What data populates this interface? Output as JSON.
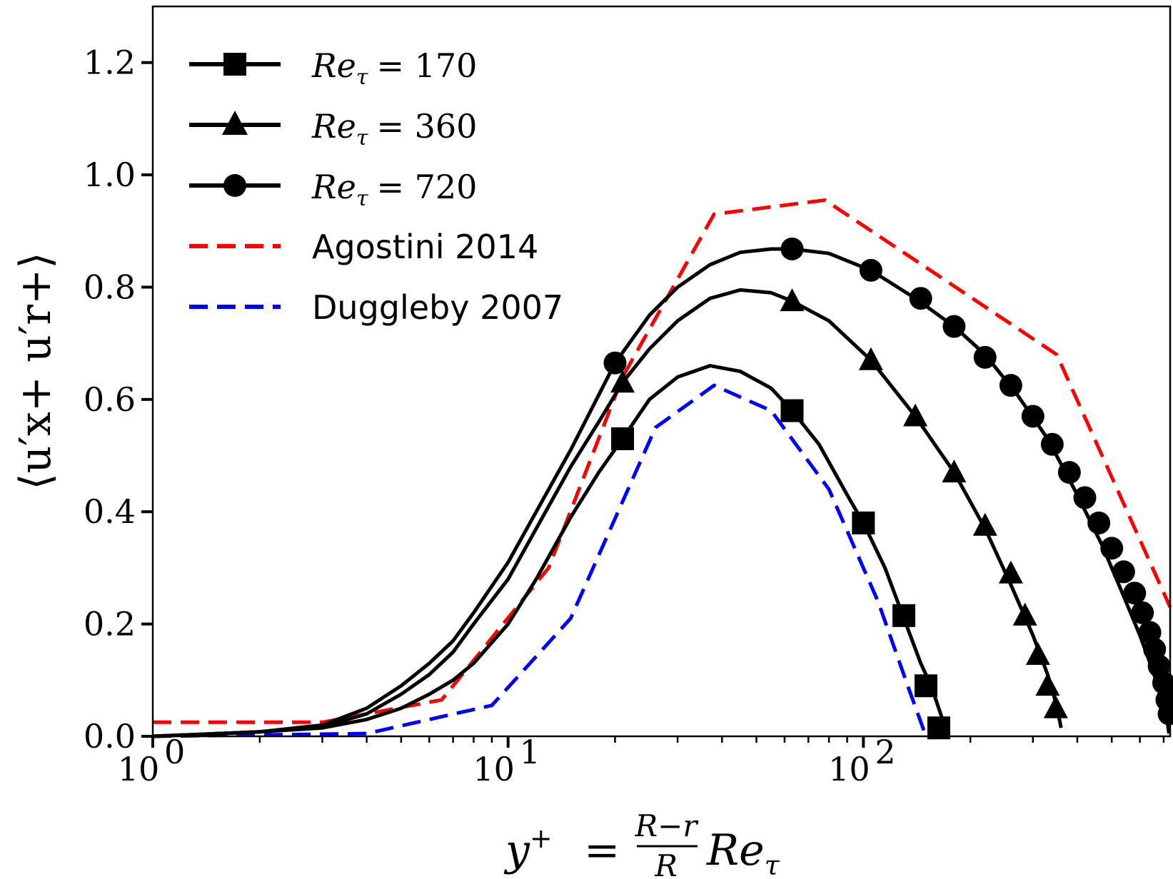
{
  "chart_data": {
    "type": "line",
    "xscale": "log",
    "xlim": [
      1,
      730
    ],
    "ylim": [
      0,
      1.3
    ],
    "grid": false,
    "legend_position": "top-left",
    "x_ticks": [
      {
        "value": 1,
        "label": "10",
        "exp": "0"
      },
      {
        "value": 10,
        "label": "10",
        "exp": "1"
      },
      {
        "value": 100,
        "label": "10",
        "exp": "2"
      }
    ],
    "y_ticks": [
      {
        "value": 0.0,
        "label": "0.0"
      },
      {
        "value": 0.2,
        "label": "0.2"
      },
      {
        "value": 0.4,
        "label": "0.4"
      },
      {
        "value": 0.6,
        "label": "0.6"
      },
      {
        "value": 0.8,
        "label": "0.8"
      },
      {
        "value": 1.0,
        "label": "1.0"
      },
      {
        "value": 1.2,
        "label": "1.2"
      }
    ],
    "xlabel": {
      "lhs": "y",
      "sup": "+",
      "eq": "=",
      "num": "R−r",
      "den": "R",
      "rhs": "Re",
      "sub": "τ"
    },
    "ylabel": "⟨u′x+ u′r+⟩",
    "series": [
      {
        "name": "Re_τ = 170",
        "legend": {
          "re": "Re",
          "sub": "τ",
          "eq": "= 170"
        },
        "color": "#000000",
        "dash": "solid",
        "marker": "square",
        "x": [
          1,
          2,
          3,
          4,
          5,
          6,
          7,
          8,
          10,
          12,
          15,
          18,
          21,
          25,
          30,
          37,
          45,
          55,
          63,
          75,
          90,
          100,
          115,
          130,
          145,
          155,
          163,
          170
        ],
        "y": [
          0,
          0.008,
          0.015,
          0.03,
          0.05,
          0.075,
          0.1,
          0.13,
          0.2,
          0.28,
          0.39,
          0.47,
          0.53,
          0.6,
          0.64,
          0.66,
          0.65,
          0.62,
          0.58,
          0.52,
          0.43,
          0.38,
          0.3,
          0.21,
          0.13,
          0.09,
          0.05,
          0.015
        ],
        "markers_x": [
          21,
          63,
          100,
          130,
          150,
          163
        ],
        "markers_y": [
          0.53,
          0.58,
          0.38,
          0.215,
          0.09,
          0.015
        ]
      },
      {
        "name": "Re_τ = 360",
        "legend": {
          "re": "Re",
          "sub": "τ",
          "eq": "= 360"
        },
        "color": "#000000",
        "dash": "solid",
        "marker": "triangle",
        "x": [
          1,
          2,
          3,
          4,
          5,
          6,
          7,
          8,
          10,
          12,
          15,
          18,
          21,
          25,
          30,
          37,
          45,
          55,
          63,
          80,
          105,
          140,
          180,
          220,
          260,
          300,
          330,
          350,
          360
        ],
        "y": [
          0,
          0.008,
          0.017,
          0.04,
          0.075,
          0.11,
          0.15,
          0.2,
          0.28,
          0.37,
          0.48,
          0.56,
          0.63,
          0.69,
          0.74,
          0.78,
          0.795,
          0.79,
          0.775,
          0.74,
          0.67,
          0.57,
          0.47,
          0.37,
          0.27,
          0.18,
          0.11,
          0.055,
          0.015
        ],
        "markers_x": [
          21,
          63,
          105,
          140,
          180,
          220,
          260,
          285,
          310,
          330,
          348
        ],
        "markers_y": [
          0.63,
          0.775,
          0.67,
          0.57,
          0.47,
          0.375,
          0.29,
          0.215,
          0.145,
          0.09,
          0.05
        ]
      },
      {
        "name": "Re_τ = 720",
        "legend": {
          "re": "Re",
          "sub": "τ",
          "eq": "= 720"
        },
        "color": "#000000",
        "dash": "solid",
        "marker": "circle",
        "x": [
          1,
          2,
          3,
          4,
          5,
          6,
          7,
          8,
          10,
          12,
          15,
          20,
          25,
          30,
          37,
          45,
          55,
          63,
          80,
          105,
          140,
          180,
          220,
          270,
          330,
          400,
          470,
          540,
          600,
          650,
          690,
          715,
          725
        ],
        "y": [
          0,
          0.008,
          0.02,
          0.05,
          0.09,
          0.13,
          0.17,
          0.22,
          0.31,
          0.4,
          0.51,
          0.665,
          0.75,
          0.8,
          0.84,
          0.862,
          0.868,
          0.868,
          0.86,
          0.83,
          0.78,
          0.73,
          0.68,
          0.61,
          0.53,
          0.43,
          0.34,
          0.25,
          0.18,
          0.12,
          0.07,
          0.03,
          0.005
        ],
        "markers_x": [
          20,
          63,
          105,
          145,
          180,
          220,
          260,
          300,
          340,
          380,
          420,
          460,
          500,
          540,
          580,
          610,
          640,
          660,
          680,
          700,
          715,
          725
        ],
        "markers_y": [
          0.665,
          0.868,
          0.83,
          0.78,
          0.73,
          0.675,
          0.625,
          0.57,
          0.52,
          0.47,
          0.425,
          0.38,
          0.335,
          0.293,
          0.255,
          0.22,
          0.185,
          0.155,
          0.125,
          0.095,
          0.065,
          0.04
        ]
      },
      {
        "name": "Agostini 2014",
        "legend": {
          "label": "Agostini 2014"
        },
        "color": "#ff0000",
        "dash": "dashed",
        "marker": "none",
        "x": [
          1,
          3,
          6.5,
          13,
          21,
          38,
          78,
          350,
          730
        ],
        "y": [
          0.025,
          0.025,
          0.065,
          0.3,
          0.64,
          0.93,
          0.955,
          0.68,
          0.23
        ]
      },
      {
        "name": "Duggleby 2007",
        "legend": {
          "label": "Duggleby 2007"
        },
        "color": "#0000ff",
        "dash": "dashed",
        "marker": "none",
        "x": [
          1,
          4,
          9,
          15,
          26,
          38,
          55,
          80,
          110,
          135,
          150
        ],
        "y": [
          0,
          0.005,
          0.055,
          0.21,
          0.55,
          0.625,
          0.58,
          0.44,
          0.24,
          0.08,
          0
        ]
      }
    ]
  }
}
